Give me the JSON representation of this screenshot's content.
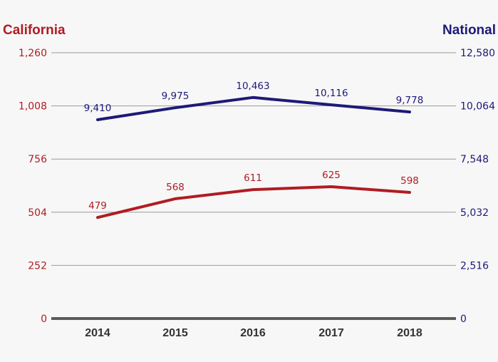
{
  "chart_data": {
    "type": "line",
    "categories": [
      "2014",
      "2015",
      "2016",
      "2017",
      "2018"
    ],
    "series": [
      {
        "name": "California",
        "axis": "left",
        "color": "#b01c22",
        "values": [
          479,
          568,
          611,
          625,
          598
        ],
        "labels": [
          "479",
          "568",
          "611",
          "625",
          "598"
        ]
      },
      {
        "name": "National",
        "axis": "right",
        "color": "#1d1a78",
        "values": [
          9410,
          9975,
          10463,
          10116,
          9778
        ],
        "labels": [
          "9,410",
          "9,975",
          "10,463",
          "10,116",
          "9,778"
        ]
      }
    ],
    "y_left": {
      "title": "California",
      "color": "#b01c22",
      "range": [
        0,
        1260
      ],
      "ticks": [
        0,
        252,
        504,
        756,
        1008,
        1260
      ],
      "tick_labels": [
        "0",
        "252",
        "504",
        "756",
        "1,008",
        "1,260"
      ]
    },
    "y_right": {
      "title": "National",
      "color": "#1d1a78",
      "range": [
        0,
        12580
      ],
      "ticks": [
        0,
        2516,
        5032,
        7548,
        10064,
        12580
      ],
      "tick_labels": [
        "0",
        "2,516",
        "5,032",
        "7,548",
        "10,064",
        "12,580"
      ]
    },
    "grid": true,
    "background": "#f7f7f7",
    "axis_color": "#5a5a5a"
  }
}
